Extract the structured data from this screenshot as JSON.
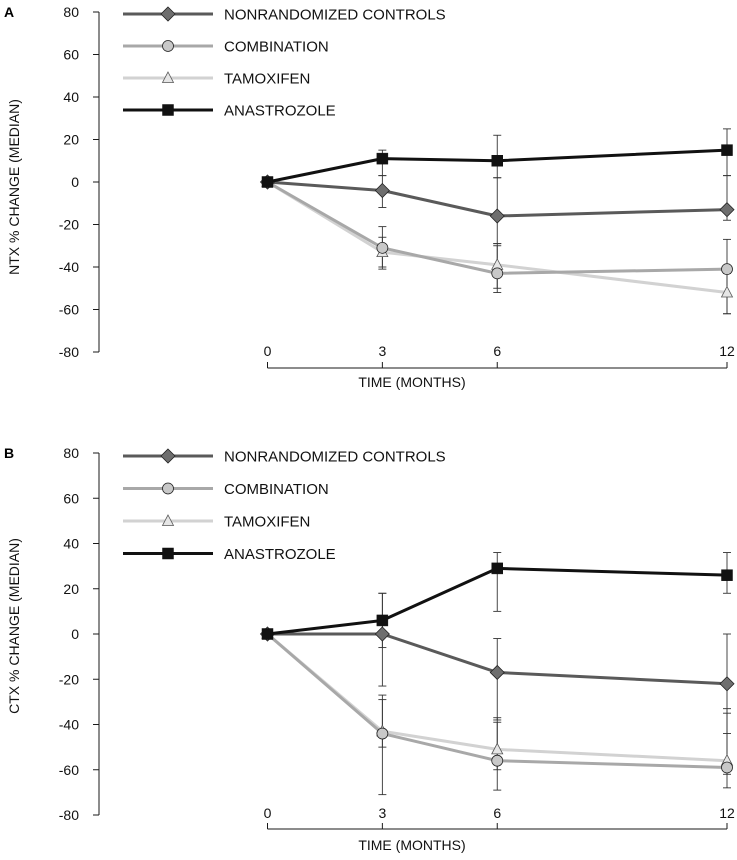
{
  "chart_data": [
    {
      "type": "line",
      "panel_label": "A",
      "ylabel": "NTX % CHANGE (MEDIAN)",
      "xlabel": "TIME (MONTHS)",
      "x": [
        0,
        3,
        6,
        12
      ],
      "x_tick_labels": [
        "0",
        "3",
        "6",
        "12"
      ],
      "ylim": [
        -80,
        80
      ],
      "y_ticks": [
        80,
        60,
        40,
        20,
        0,
        -20,
        -40,
        -60,
        -80
      ],
      "y_tick_labels": [
        "80",
        "60",
        "40",
        "20",
        "0",
        "-20",
        "-40",
        "-60",
        "-80"
      ],
      "legend_position": "top-left",
      "series": [
        {
          "name": "NONRANDOMIZED CONTROLS",
          "color": "#5a5a5a",
          "marker": "diamond",
          "marker_fill": "#6e6e6e",
          "values": [
            0,
            -4,
            -16,
            -13
          ],
          "err_low": [
            null,
            -12,
            -29,
            -18
          ],
          "err_high": [
            null,
            3,
            2,
            3
          ]
        },
        {
          "name": "COMBINATION",
          "color": "#a8a8a8",
          "marker": "circle",
          "marker_fill": "#c8c8c8",
          "values": [
            0,
            -31,
            -43,
            -41
          ],
          "err_low": [
            null,
            -40,
            -52,
            -62
          ],
          "err_high": [
            null,
            -21,
            -29,
            -27
          ]
        },
        {
          "name": "TAMOXIFEN",
          "color": "#d2d2d2",
          "marker": "triangle",
          "marker_fill": "#e6e6e6",
          "values": [
            0,
            -33,
            -39,
            -52
          ],
          "err_low": [
            null,
            -41,
            -50,
            -62
          ],
          "err_high": [
            null,
            -26,
            -30,
            -43
          ]
        },
        {
          "name": "ANASTROZOLE",
          "color": "#111111",
          "marker": "square",
          "marker_fill": "#111111",
          "values": [
            0,
            11,
            10,
            15
          ],
          "err_low": [
            null,
            3,
            2,
            3
          ],
          "err_high": [
            null,
            15,
            22,
            25
          ]
        }
      ]
    },
    {
      "type": "line",
      "panel_label": "B",
      "ylabel": "CTX % CHANGE (MEDIAN)",
      "xlabel": "TIME (MONTHS)",
      "x": [
        0,
        3,
        6,
        12
      ],
      "x_tick_labels": [
        "0",
        "3",
        "6",
        "12"
      ],
      "ylim": [
        -80,
        80
      ],
      "y_ticks": [
        80,
        60,
        40,
        20,
        0,
        -20,
        -40,
        -60,
        -80
      ],
      "y_tick_labels": [
        "80",
        "60",
        "40",
        "20",
        "0",
        "-20",
        "-40",
        "-60",
        "-80"
      ],
      "legend_position": "top-left",
      "series": [
        {
          "name": "NONRANDOMIZED CONTROLS",
          "color": "#5a5a5a",
          "marker": "diamond",
          "marker_fill": "#6e6e6e",
          "values": [
            0,
            0,
            -17,
            -22
          ],
          "err_low": [
            null,
            -23,
            -38,
            -44
          ],
          "err_high": [
            null,
            18,
            -2,
            0
          ]
        },
        {
          "name": "COMBINATION",
          "color": "#a8a8a8",
          "marker": "circle",
          "marker_fill": "#c8c8c8",
          "values": [
            0,
            -44,
            -56,
            -59
          ],
          "err_low": [
            null,
            -71,
            -69,
            -68
          ],
          "err_high": [
            null,
            -27,
            -39,
            -35
          ]
        },
        {
          "name": "TAMOXIFEN",
          "color": "#d2d2d2",
          "marker": "triangle",
          "marker_fill": "#e6e6e6",
          "values": [
            0,
            -43,
            -51,
            -56
          ],
          "err_low": [
            null,
            -50,
            -60,
            -62
          ],
          "err_high": [
            null,
            -29,
            -37,
            -33
          ]
        },
        {
          "name": "ANASTROZOLE",
          "color": "#111111",
          "marker": "square",
          "marker_fill": "#111111",
          "values": [
            0,
            6,
            29,
            26
          ],
          "err_low": [
            null,
            -6,
            10,
            18
          ],
          "err_high": [
            null,
            18,
            36,
            36
          ]
        }
      ]
    }
  ]
}
